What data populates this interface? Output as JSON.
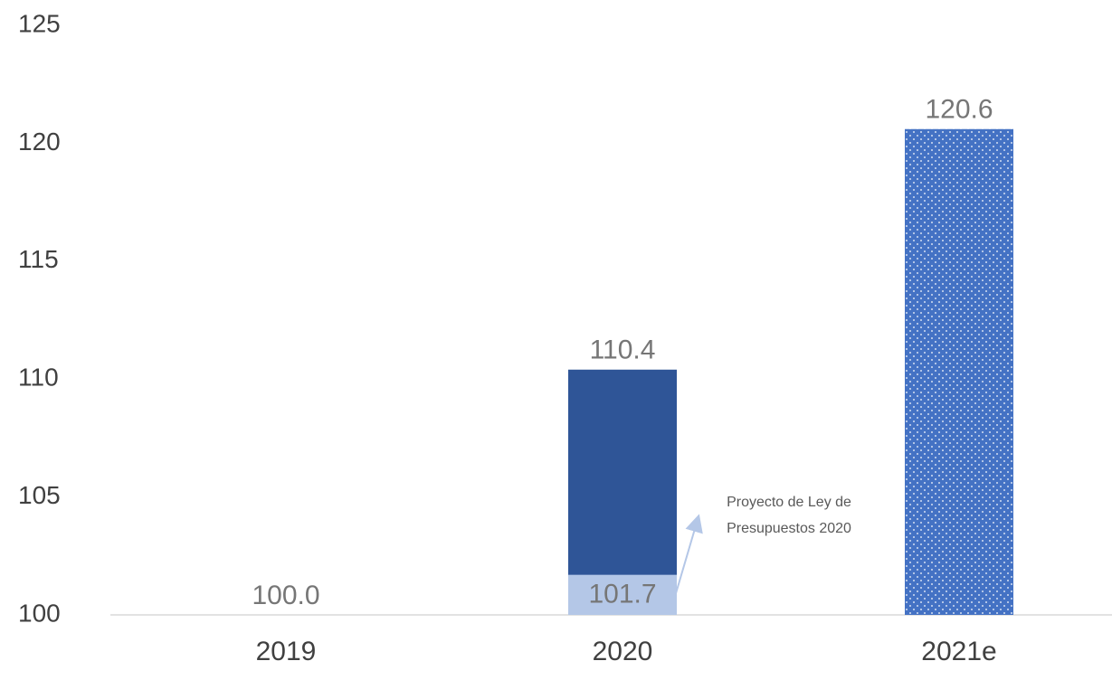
{
  "chart_data": {
    "type": "bar",
    "categories": [
      "2019",
      "2020",
      "2021e"
    ],
    "series": [
      {
        "values": [
          100.0,
          110.4,
          120.6
        ],
        "value_labels": [
          "100.0",
          "110.4",
          "120.6"
        ],
        "colors": [
          "#2f5597",
          "#2f5597",
          "#4472c4"
        ],
        "dotted": [
          false,
          false,
          true
        ]
      },
      {
        "values": [
          null,
          101.7,
          null
        ],
        "color": "#b4c7e7",
        "labels_inside": true
      }
    ],
    "annotation": [
      "Proyecto de Ley de",
      "Presupuestos 2020"
    ],
    "ylim": [
      100,
      125
    ],
    "yticks": [
      100,
      105,
      110,
      115,
      120,
      125
    ],
    "grid": false
  }
}
